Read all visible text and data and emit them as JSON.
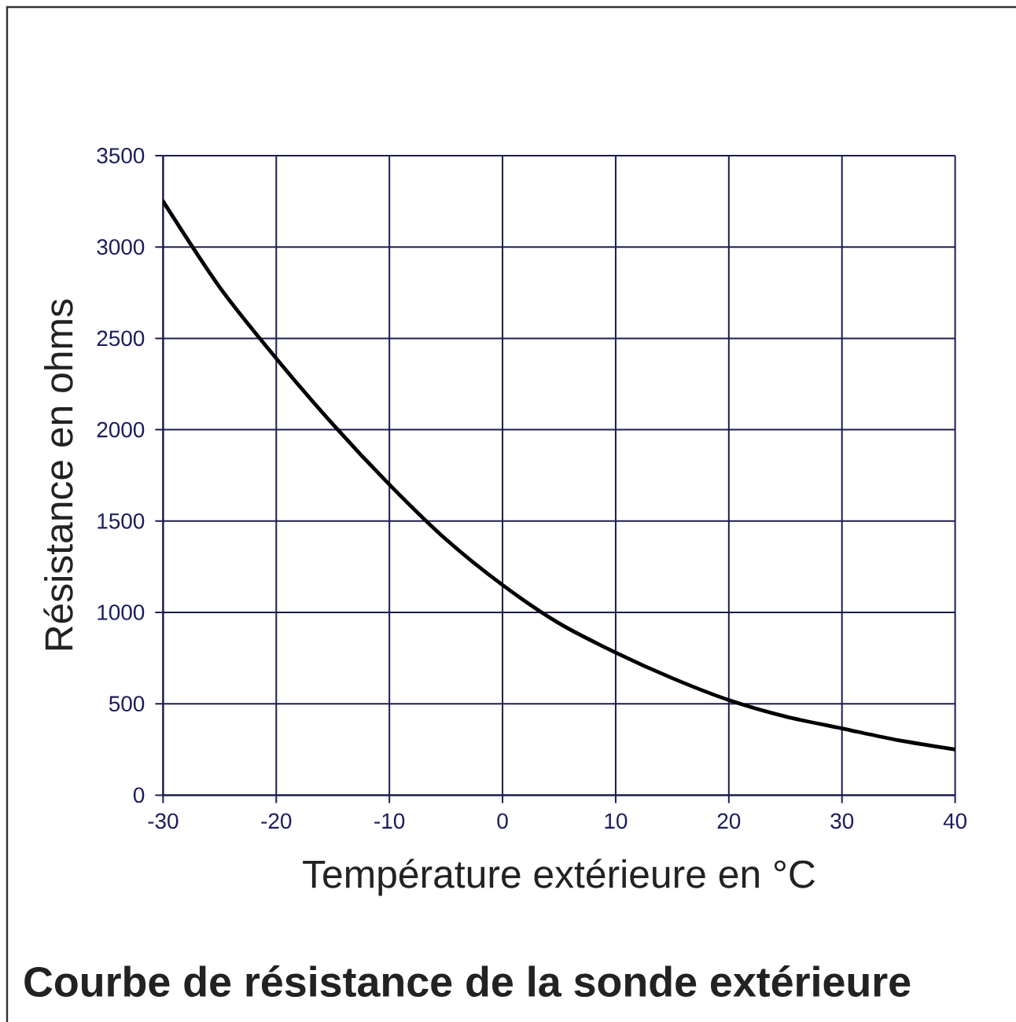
{
  "chart_data": {
    "type": "line",
    "title": "Courbe de résistance de la sonde extérieure",
    "xlabel": "Température extérieure en °C",
    "ylabel": "Résistance en ohms",
    "x": [
      -30,
      -25,
      -20,
      -15,
      -10,
      -5,
      0,
      5,
      10,
      15,
      20,
      25,
      30,
      35,
      40
    ],
    "series": [
      {
        "color": "#000000",
        "values": [
          3250,
          2780,
          2390,
          2030,
          1700,
          1400,
          1150,
          940,
          780,
          640,
          520,
          430,
          365,
          300,
          250
        ]
      }
    ],
    "xlim": [
      -30,
      40
    ],
    "ylim": [
      0,
      3500
    ],
    "xticks": [
      -30,
      -20,
      -10,
      0,
      10,
      20,
      30,
      40
    ],
    "yticks": [
      0,
      500,
      1000,
      1500,
      2000,
      2500,
      3000,
      3500
    ],
    "grid": true,
    "marker": "none",
    "line_style": "solid"
  }
}
